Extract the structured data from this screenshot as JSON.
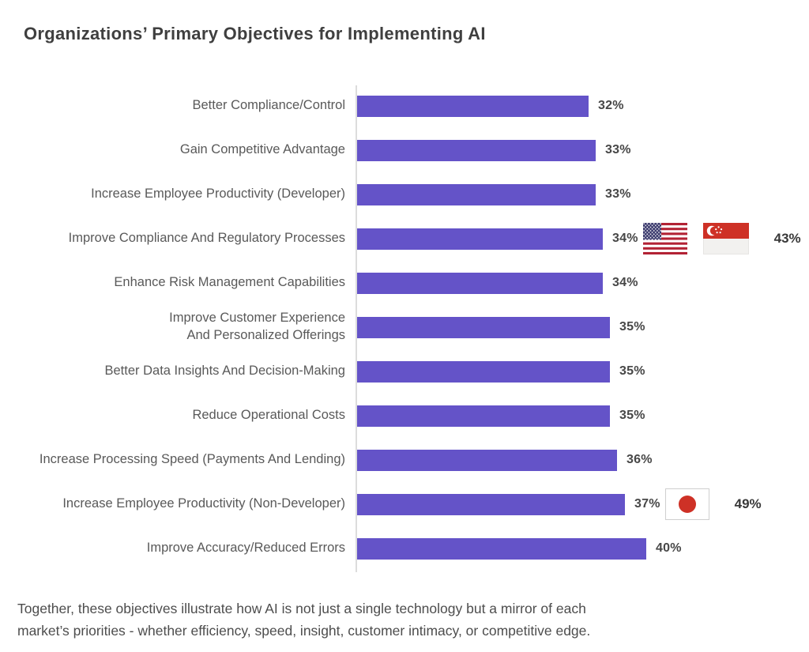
{
  "title": "Organizations’ Primary Objectives for Implementing AI",
  "chart_data": {
    "type": "bar",
    "orientation": "horizontal",
    "unit": "percent",
    "bar_color": "#6453C8",
    "grid": false,
    "legend": false,
    "title": "Organizations’ Primary Objectives for Implementing AI",
    "rows": [
      {
        "label": "Better Compliance/Control",
        "value": 32,
        "value_label": "32%"
      },
      {
        "label": "Gain Competitive Advantage",
        "value": 33,
        "value_label": "33%"
      },
      {
        "label": "Increase Employee Productivity (Developer)",
        "value": 33,
        "value_label": "33%"
      },
      {
        "label": "Improve Compliance And Regulatory Processes",
        "value": 34,
        "value_label": "34%",
        "flags": [
          "us",
          "sg"
        ],
        "flag_names": [
          "united-states",
          "singapore"
        ],
        "highlight_value": 43,
        "highlight_label": "43%"
      },
      {
        "label": "Enhance Risk Management Capabilities",
        "value": 34,
        "value_label": "34%"
      },
      {
        "label": "Improve Customer Experience\nAnd Personalized Offerings",
        "value": 35,
        "value_label": "35%"
      },
      {
        "label": "Better Data Insights And Decision-Making",
        "value": 35,
        "value_label": "35%"
      },
      {
        "label": "Reduce Operational Costs",
        "value": 35,
        "value_label": "35%"
      },
      {
        "label": "Increase Processing Speed (Payments And Lending)",
        "value": 36,
        "value_label": "36%"
      },
      {
        "label": "Increase Employee Productivity (Non-Developer)",
        "value": 37,
        "value_label": "37%",
        "flags": [
          "jp"
        ],
        "flag_names": [
          "japan"
        ],
        "highlight_value": 49,
        "highlight_label": "49%"
      },
      {
        "label": "Improve Accuracy/Reduced Errors",
        "value": 40,
        "value_label": "40%"
      }
    ]
  },
  "footer": {
    "text": "Together, these objectives illustrate how AI is not just a single technology but a mirror of each\nmarket’s priorities - whether efficiency, speed, insight, customer intimacy, or competitive edge."
  },
  "colors": {
    "bar": "#6453C8",
    "axis_line": "#dcdcdc",
    "title_text": "#3f3f3f",
    "label_text": "#595959",
    "flag_red": "#CE3126",
    "us_flag_blue": "#3C3B6E",
    "us_flag_red": "#B22234"
  }
}
